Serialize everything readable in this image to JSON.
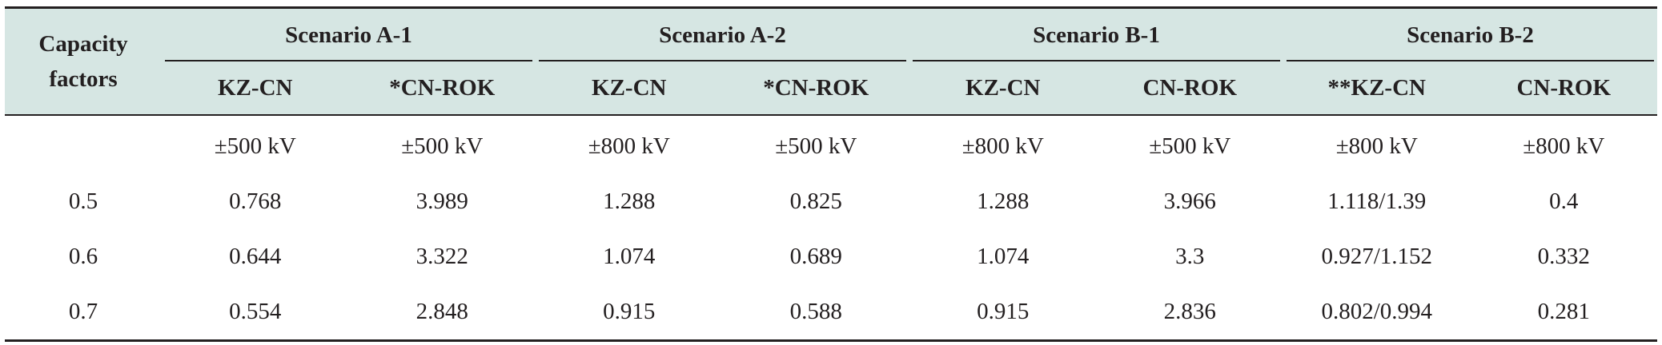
{
  "table": {
    "row_header": "Capacity factors",
    "groups": [
      {
        "label": "Scenario A-1",
        "sub": [
          "KZ-CN",
          "*CN-ROK"
        ]
      },
      {
        "label": "Scenario A-2",
        "sub": [
          "KZ-CN",
          "*CN-ROK"
        ]
      },
      {
        "label": "Scenario B-1",
        "sub": [
          "KZ-CN",
          "CN-ROK"
        ]
      },
      {
        "label": "Scenario B-2",
        "sub": [
          "**KZ-CN",
          "CN-ROK"
        ]
      }
    ],
    "rows": [
      {
        "factor": "",
        "cells": [
          "±500 kV",
          "±500 kV",
          "±800 kV",
          "±500 kV",
          "±800 kV",
          "±500 kV",
          "±800 kV",
          "±800 kV"
        ]
      },
      {
        "factor": "0.5",
        "cells": [
          "0.768",
          "3.989",
          "1.288",
          "0.825",
          "1.288",
          "3.966",
          "1.118/1.39",
          "0.4"
        ]
      },
      {
        "factor": "0.6",
        "cells": [
          "0.644",
          "3.322",
          "1.074",
          "0.689",
          "1.074",
          "3.3",
          "0.927/1.152",
          "0.332"
        ]
      },
      {
        "factor": "0.7",
        "cells": [
          "0.554",
          "2.848",
          "0.915",
          "0.588",
          "0.915",
          "2.836",
          "0.802/0.994",
          "0.281"
        ]
      }
    ]
  }
}
